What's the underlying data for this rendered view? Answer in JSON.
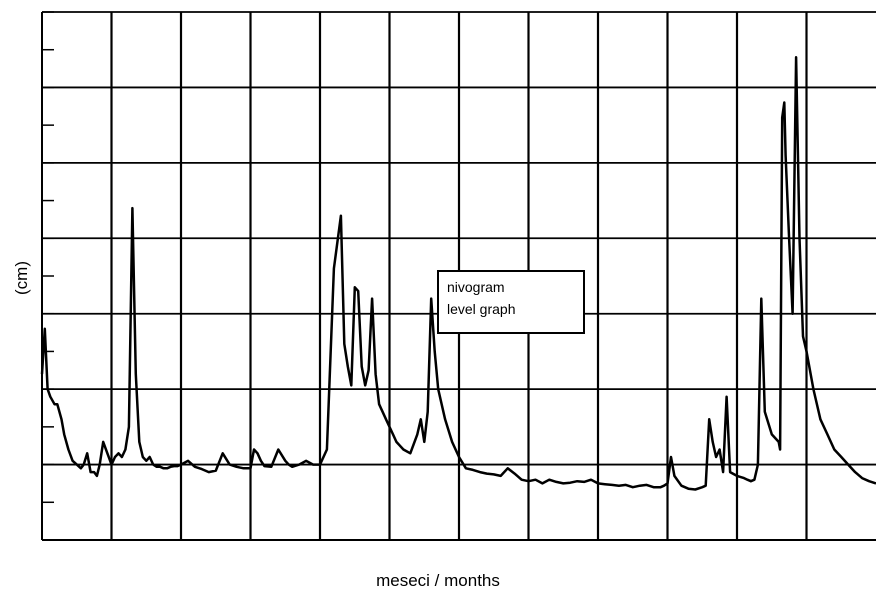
{
  "chart_data": {
    "type": "line",
    "title": "",
    "xlabel": "meseci / months",
    "ylabel": "(cm)",
    "xlim": [
      0,
      12
    ],
    "ylim": [
      0,
      7
    ],
    "grid": true,
    "legend_placement": "center",
    "legend": [
      "nivogram",
      "level graph"
    ],
    "series": [
      {
        "name": "nivogram / level graph",
        "x": [
          0,
          0.04,
          0.08,
          0.12,
          0.18,
          0.22,
          0.28,
          0.32,
          0.38,
          0.44,
          0.5,
          0.56,
          0.6,
          0.65,
          0.7,
          0.75,
          0.79,
          0.83,
          0.88,
          1.0,
          1.05,
          1.1,
          1.15,
          1.2,
          1.25,
          1.3,
          1.35,
          1.4,
          1.45,
          1.5,
          1.55,
          1.6,
          1.65,
          1.7,
          1.75,
          1.8,
          1.85,
          1.9,
          1.95,
          2.0,
          2.1,
          2.2,
          2.3,
          2.4,
          2.5,
          2.6,
          2.7,
          2.8,
          2.9,
          3.0,
          3.05,
          3.1,
          3.15,
          3.2,
          3.3,
          3.4,
          3.5,
          3.55,
          3.6,
          3.7,
          3.8,
          3.9,
          4.0,
          4.1,
          4.2,
          4.3,
          4.35,
          4.4,
          4.45,
          4.5,
          4.55,
          4.6,
          4.65,
          4.7,
          4.75,
          4.8,
          4.85,
          4.9,
          4.95,
          5.0,
          5.05,
          5.1,
          5.15,
          5.2,
          5.3,
          5.4,
          5.45,
          5.5,
          5.55,
          5.6,
          5.65,
          5.7,
          5.8,
          5.9,
          6.0,
          6.1,
          6.2,
          6.3,
          6.4,
          6.5,
          6.6,
          6.7,
          6.8,
          6.9,
          7.0,
          7.1,
          7.2,
          7.3,
          7.4,
          7.5,
          7.6,
          7.7,
          7.8,
          7.9,
          8.0,
          8.1,
          8.2,
          8.3,
          8.4,
          8.5,
          8.6,
          8.7,
          8.8,
          8.9,
          8.95,
          9.0,
          9.05,
          9.1,
          9.2,
          9.3,
          9.4,
          9.5,
          9.55,
          9.6,
          9.65,
          9.7,
          9.75,
          9.8,
          9.85,
          9.9,
          10.0,
          10.1,
          10.15,
          10.2,
          10.25,
          10.3,
          10.35,
          10.4,
          10.5,
          10.6,
          10.62,
          10.65,
          10.68,
          10.7,
          10.75,
          10.8,
          10.85,
          10.9,
          10.95,
          11.0,
          11.1,
          11.2,
          11.3,
          11.4,
          11.5,
          11.6,
          11.7,
          11.8,
          11.9,
          12.0
        ],
        "values": [
          2.2,
          2.8,
          2.0,
          1.9,
          1.8,
          1.8,
          1.6,
          1.4,
          1.2,
          1.05,
          1.0,
          0.95,
          1.0,
          1.15,
          0.9,
          0.9,
          0.85,
          1.0,
          1.3,
          1.0,
          1.1,
          1.15,
          1.1,
          1.2,
          1.5,
          4.4,
          2.2,
          1.3,
          1.1,
          1.05,
          1.1,
          1.0,
          0.97,
          0.97,
          0.95,
          0.95,
          0.97,
          0.98,
          0.98,
          1.0,
          1.05,
          0.97,
          0.94,
          0.9,
          0.92,
          1.15,
          1.0,
          0.97,
          0.95,
          0.95,
          1.2,
          1.15,
          1.05,
          0.98,
          0.97,
          1.2,
          1.05,
          1.0,
          0.97,
          1.0,
          1.05,
          1.0,
          1.0,
          1.2,
          3.6,
          4.3,
          2.6,
          2.3,
          2.05,
          3.35,
          3.3,
          2.3,
          2.05,
          2.25,
          3.2,
          2.2,
          1.8,
          1.7,
          1.6,
          1.5,
          1.4,
          1.3,
          1.25,
          1.2,
          1.15,
          1.4,
          1.6,
          1.3,
          1.7,
          3.2,
          2.5,
          2.0,
          1.6,
          1.3,
          1.1,
          0.95,
          0.93,
          0.9,
          0.88,
          0.87,
          0.85,
          0.95,
          0.88,
          0.8,
          0.78,
          0.8,
          0.75,
          0.8,
          0.77,
          0.75,
          0.76,
          0.78,
          0.77,
          0.8,
          0.75,
          0.74,
          0.73,
          0.72,
          0.73,
          0.7,
          0.72,
          0.73,
          0.7,
          0.7,
          0.72,
          0.75,
          1.1,
          0.85,
          0.72,
          0.68,
          0.67,
          0.7,
          0.72,
          1.6,
          1.3,
          1.1,
          1.2,
          0.9,
          1.9,
          0.9,
          0.85,
          0.82,
          0.8,
          0.78,
          0.8,
          1.0,
          3.2,
          1.7,
          1.4,
          1.3,
          1.2,
          5.6,
          5.8,
          5.1,
          4.0,
          3.0,
          6.4,
          4.0,
          2.7,
          2.5,
          2.0,
          1.6,
          1.4,
          1.2,
          1.1,
          1.0,
          0.9,
          0.82,
          0.78,
          0.75
        ]
      }
    ]
  }
}
